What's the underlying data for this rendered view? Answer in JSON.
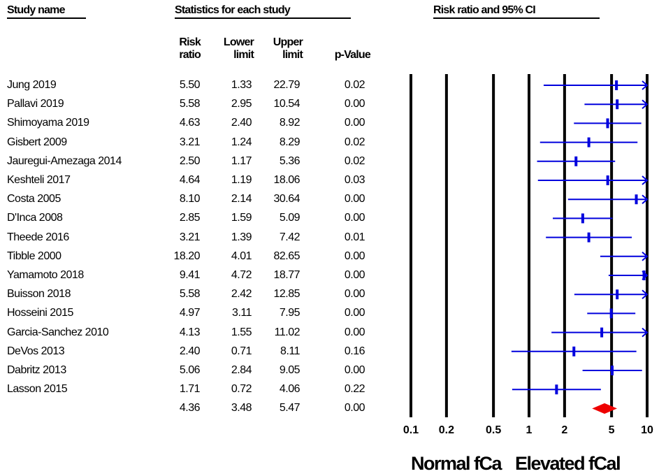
{
  "headers": {
    "study_name": "Study name",
    "statistics": "Statistics for each study",
    "plot_title": "Risk ratio and 95% CI"
  },
  "columns": {
    "risk_ratio": [
      "Risk",
      "ratio"
    ],
    "lower_limit": [
      "Lower",
      "limit"
    ],
    "upper_limit": [
      "Upper",
      "limit"
    ],
    "p_value": [
      "",
      "p-Value"
    ]
  },
  "rows": [
    {
      "name": "Jung 2019",
      "rr": "5.50",
      "lower": "1.33",
      "upper": "22.79",
      "p": "0.02"
    },
    {
      "name": "Pallavi 2019",
      "rr": "5.58",
      "lower": "2.95",
      "upper": "10.54",
      "p": "0.00"
    },
    {
      "name": "Shimoyama 2019",
      "rr": "4.63",
      "lower": "2.40",
      "upper": "8.92",
      "p": "0.00"
    },
    {
      "name": "Gisbert 2009",
      "rr": "3.21",
      "lower": "1.24",
      "upper": "8.29",
      "p": "0.02"
    },
    {
      "name": "Jauregui-Amezaga 2014",
      "rr": "2.50",
      "lower": "1.17",
      "upper": "5.36",
      "p": "0.02"
    },
    {
      "name": "Keshteli 2017",
      "rr": "4.64",
      "lower": "1.19",
      "upper": "18.06",
      "p": "0.03"
    },
    {
      "name": "Costa 2005",
      "rr": "8.10",
      "lower": "2.14",
      "upper": "30.64",
      "p": "0.00"
    },
    {
      "name": "D'Inca 2008",
      "rr": "2.85",
      "lower": "1.59",
      "upper": "5.09",
      "p": "0.00"
    },
    {
      "name": "Theede 2016",
      "rr": "3.21",
      "lower": "1.39",
      "upper": "7.42",
      "p": "0.01"
    },
    {
      "name": "Tibble 2000",
      "rr": "18.20",
      "lower": "4.01",
      "upper": "82.65",
      "p": "0.00"
    },
    {
      "name": "Yamamoto 2018",
      "rr": "9.41",
      "lower": "4.72",
      "upper": "18.77",
      "p": "0.00"
    },
    {
      "name": "Buisson 2018",
      "rr": "5.58",
      "lower": "2.42",
      "upper": "12.85",
      "p": "0.00"
    },
    {
      "name": "Hosseini 2015",
      "rr": "4.97",
      "lower": "3.11",
      "upper": "7.95",
      "p": "0.00"
    },
    {
      "name": "Garcia-Sanchez 2010",
      "rr": "4.13",
      "lower": "1.55",
      "upper": "11.02",
      "p": "0.00"
    },
    {
      "name": "DeVos 2013",
      "rr": "2.40",
      "lower": "0.71",
      "upper": "8.11",
      "p": "0.16"
    },
    {
      "name": "Dabritz 2013",
      "rr": "5.06",
      "lower": "2.84",
      "upper": "9.05",
      "p": "0.00"
    },
    {
      "name": "Lasson 2015",
      "rr": "1.71",
      "lower": "0.72",
      "upper": "4.06",
      "p": "0.22"
    }
  ],
  "summary": {
    "name": "",
    "rr": "4.36",
    "lower": "3.48",
    "upper": "5.47",
    "p": "0.00"
  },
  "footer": {
    "left": "Normal fCa",
    "right": "Elevated fCal"
  },
  "chart_data": {
    "type": "forest",
    "title": "Risk ratio and 95% CI",
    "scale": "log",
    "xlim": [
      0.1,
      10
    ],
    "xticks": [
      0.1,
      0.2,
      0.5,
      1,
      2,
      5,
      10
    ],
    "xtick_labels": [
      "0.1",
      "0.2",
      "0.5",
      "1",
      "2",
      "5",
      "10"
    ],
    "reference_lines": [
      0.1,
      0.2,
      0.5,
      1,
      2,
      5,
      10
    ],
    "studies": [
      {
        "name": "Jung 2019",
        "rr": 5.5,
        "lower": 1.33,
        "upper": 22.79
      },
      {
        "name": "Pallavi 2019",
        "rr": 5.58,
        "lower": 2.95,
        "upper": 10.54
      },
      {
        "name": "Shimoyama 2019",
        "rr": 4.63,
        "lower": 2.4,
        "upper": 8.92
      },
      {
        "name": "Gisbert 2009",
        "rr": 3.21,
        "lower": 1.24,
        "upper": 8.29
      },
      {
        "name": "Jauregui-Amezaga 2014",
        "rr": 2.5,
        "lower": 1.17,
        "upper": 5.36
      },
      {
        "name": "Keshteli 2017",
        "rr": 4.64,
        "lower": 1.19,
        "upper": 18.06
      },
      {
        "name": "Costa 2005",
        "rr": 8.1,
        "lower": 2.14,
        "upper": 30.64
      },
      {
        "name": "D'Inca 2008",
        "rr": 2.85,
        "lower": 1.59,
        "upper": 5.09
      },
      {
        "name": "Theede 2016",
        "rr": 3.21,
        "lower": 1.39,
        "upper": 7.42
      },
      {
        "name": "Tibble 2000",
        "rr": 18.2,
        "lower": 4.01,
        "upper": 82.65
      },
      {
        "name": "Yamamoto 2018",
        "rr": 9.41,
        "lower": 4.72,
        "upper": 18.77
      },
      {
        "name": "Buisson 2018",
        "rr": 5.58,
        "lower": 2.42,
        "upper": 12.85
      },
      {
        "name": "Hosseini 2015",
        "rr": 4.97,
        "lower": 3.11,
        "upper": 7.95
      },
      {
        "name": "Garcia-Sanchez 2010",
        "rr": 4.13,
        "lower": 1.55,
        "upper": 11.02
      },
      {
        "name": "DeVos 2013",
        "rr": 2.4,
        "lower": 0.71,
        "upper": 8.11
      },
      {
        "name": "Dabritz 2013",
        "rr": 5.06,
        "lower": 2.84,
        "upper": 9.05
      },
      {
        "name": "Lasson 2015",
        "rr": 1.71,
        "lower": 0.72,
        "upper": 4.06
      }
    ],
    "pooled": {
      "rr": 4.36,
      "lower": 3.48,
      "upper": 5.47
    },
    "study_color": "#0000dd",
    "pooled_color": "#ee0000",
    "line_color": "#000000"
  }
}
